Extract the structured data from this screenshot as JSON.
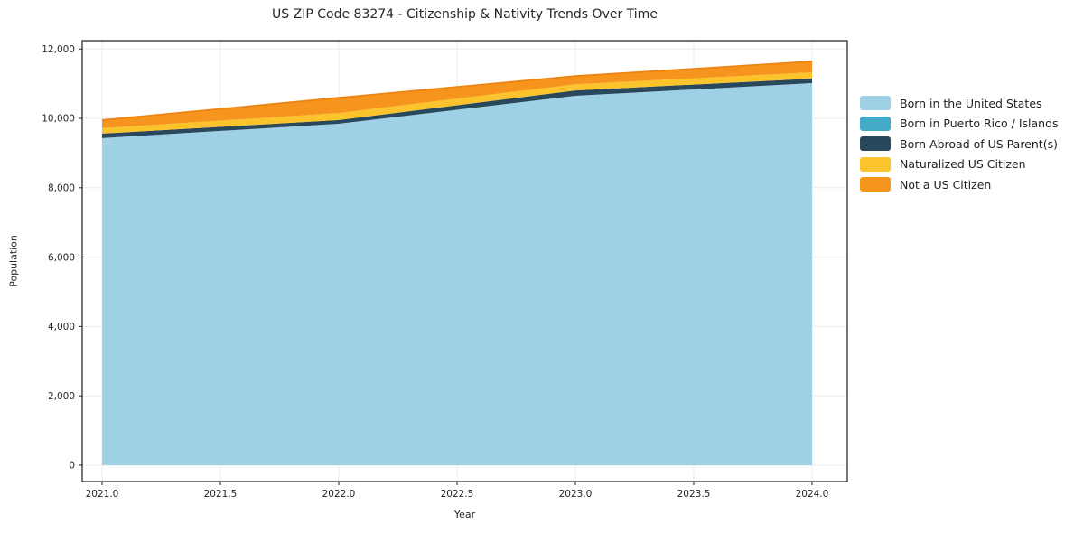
{
  "title": "US ZIP Code 83274 - Citizenship & Nativity Trends Over Time",
  "chart_data": {
    "type": "area",
    "stacked": true,
    "title": "US ZIP Code 83274 - Citizenship & Nativity Trends Over Time",
    "xlabel": "Year",
    "ylabel": "Population",
    "x": [
      2021,
      2022,
      2023,
      2024
    ],
    "series": [
      {
        "name": "Born in the United States",
        "color": "#9FD1E6",
        "values": [
          9430,
          9845,
          10650,
          11015
        ]
      },
      {
        "name": "Born in Puerto Rico / Islands",
        "color": "#45AAC7",
        "values": [
          0,
          0,
          0,
          0
        ]
      },
      {
        "name": "Born Abroad of US Parent(s)",
        "color": "#2A485C",
        "values": [
          130,
          105,
          155,
          130
        ]
      },
      {
        "name": "Naturalized US Citizen",
        "color": "#FBC32C",
        "values": [
          155,
          205,
          180,
          180
        ]
      },
      {
        "name": "Not a US Citizen",
        "color": "#F7941E",
        "edge_color": "#ED8412",
        "values": [
          235,
          440,
          235,
          315
        ]
      }
    ],
    "x_tick_labels": [
      "2021.0",
      "2021.5",
      "2022.0",
      "2022.5",
      "2023.0",
      "2023.5",
      "2024.0"
    ],
    "x_tick_values": [
      2021.0,
      2021.5,
      2022.0,
      2022.5,
      2023.0,
      2023.5,
      2024.0
    ],
    "y_tick_labels": [
      "0",
      "2,000",
      "4,000",
      "6,000",
      "8,000",
      "10,000",
      "12,000"
    ],
    "y_tick_values": [
      0,
      2000,
      4000,
      6000,
      8000,
      10000,
      12000
    ],
    "xlim": [
      2020.916,
      2024.149
    ],
    "ylim": [
      -470,
      12240
    ],
    "grid": true,
    "grid_color": "#EBEBEB",
    "frame_color": "#1A1A1A",
    "tick_label_color": "#262626",
    "legend_position": "right"
  }
}
